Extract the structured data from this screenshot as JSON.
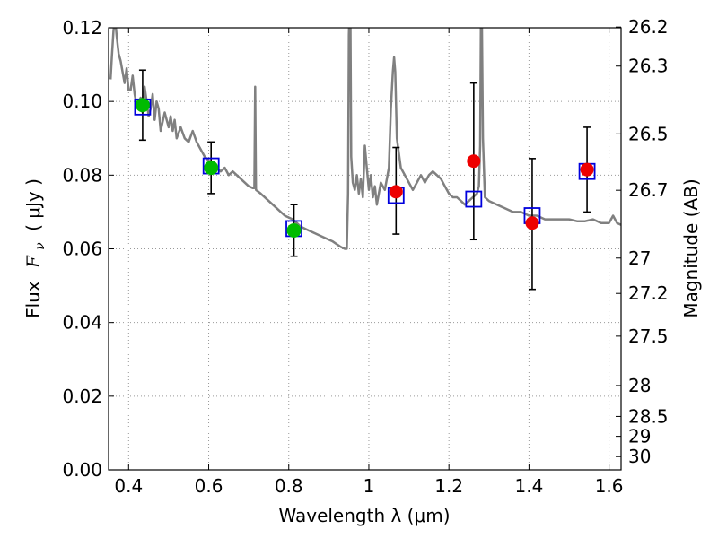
{
  "chart_data": {
    "type": "scatter",
    "title": "",
    "xlabel": "Wavelength  λ (μm)",
    "ylabel_prefix": "Flux",
    "ylabel_symbol": "F",
    "ylabel_sub": "ν",
    "ylabel_suffix": "(  μJy )",
    "y2label": "Magnitude (AB)",
    "xlim": [
      0.35,
      1.63
    ],
    "ylim": [
      0.0,
      0.12
    ],
    "grid": true,
    "x_ticks": [
      0.4,
      0.6,
      0.8,
      1.0,
      1.2,
      1.4,
      1.6
    ],
    "x_tick_labels": [
      "0.4",
      "0.6",
      "0.8",
      "1",
      "1.2",
      "1.4",
      "1.6"
    ],
    "y_ticks": [
      0.0,
      0.02,
      0.04,
      0.06,
      0.08,
      0.1,
      0.12
    ],
    "y_tick_labels": [
      "0.00",
      "0.02",
      "0.04",
      "0.06",
      "0.08",
      "0.10",
      "0.12"
    ],
    "y2_ticks": [
      {
        "label": "26.2",
        "flux": 0.1202
      },
      {
        "label": "26.3",
        "flux": 0.1096
      },
      {
        "label": "26.5",
        "flux": 0.0912
      },
      {
        "label": "26.7",
        "flux": 0.0759
      },
      {
        "label": "27",
        "flux": 0.0575
      },
      {
        "label": "27.2",
        "flux": 0.0479
      },
      {
        "label": "27.5",
        "flux": 0.0363
      },
      {
        "label": "28",
        "flux": 0.0229
      },
      {
        "label": "28.5",
        "flux": 0.0145
      },
      {
        "label": "29",
        "flux": 0.0091
      },
      {
        "label": "30",
        "flux": 0.0036
      }
    ],
    "colors": {
      "model_sed": "#808080",
      "model_flux": "#0000dd",
      "optical_obs": "#00bb00",
      "nir_obs": "#ee0000",
      "error_bar": "#000000",
      "grid": "#999999"
    },
    "series": [
      {
        "kind": "model_sed_line",
        "points": [
          [
            0.355,
            0.106
          ],
          [
            0.358,
            0.112
          ],
          [
            0.362,
            0.119
          ],
          [
            0.366,
            0.123
          ],
          [
            0.37,
            0.118
          ],
          [
            0.375,
            0.113
          ],
          [
            0.38,
            0.111
          ],
          [
            0.385,
            0.108
          ],
          [
            0.39,
            0.105
          ],
          [
            0.395,
            0.109
          ],
          [
            0.4,
            0.103
          ],
          [
            0.405,
            0.103
          ],
          [
            0.41,
            0.107
          ],
          [
            0.415,
            0.102
          ],
          [
            0.42,
            0.099
          ],
          [
            0.425,
            0.1
          ],
          [
            0.43,
            0.101
          ],
          [
            0.435,
            0.097
          ],
          [
            0.44,
            0.104
          ],
          [
            0.445,
            0.1
          ],
          [
            0.45,
            0.096
          ],
          [
            0.455,
            0.098
          ],
          [
            0.46,
            0.102
          ],
          [
            0.465,
            0.095
          ],
          [
            0.47,
            0.1
          ],
          [
            0.475,
            0.098
          ],
          [
            0.48,
            0.092
          ],
          [
            0.49,
            0.097
          ],
          [
            0.5,
            0.093
          ],
          [
            0.505,
            0.096
          ],
          [
            0.51,
            0.092
          ],
          [
            0.515,
            0.095
          ],
          [
            0.52,
            0.09
          ],
          [
            0.53,
            0.093
          ],
          [
            0.54,
            0.09
          ],
          [
            0.55,
            0.089
          ],
          [
            0.56,
            0.092
          ],
          [
            0.57,
            0.089
          ],
          [
            0.58,
            0.087
          ],
          [
            0.59,
            0.085
          ],
          [
            0.6,
            0.084
          ],
          [
            0.61,
            0.083
          ],
          [
            0.62,
            0.082
          ],
          [
            0.63,
            0.081
          ],
          [
            0.64,
            0.082
          ],
          [
            0.65,
            0.08
          ],
          [
            0.66,
            0.081
          ],
          [
            0.67,
            0.08
          ],
          [
            0.68,
            0.079
          ],
          [
            0.69,
            0.078
          ],
          [
            0.7,
            0.077
          ],
          [
            0.71,
            0.0765
          ],
          [
            0.714,
            0.0765
          ],
          [
            0.716,
            0.104
          ],
          [
            0.718,
            0.076
          ],
          [
            0.73,
            0.075
          ],
          [
            0.75,
            0.073
          ],
          [
            0.77,
            0.071
          ],
          [
            0.79,
            0.069
          ],
          [
            0.81,
            0.068
          ],
          [
            0.83,
            0.066
          ],
          [
            0.85,
            0.065
          ],
          [
            0.87,
            0.064
          ],
          [
            0.89,
            0.063
          ],
          [
            0.91,
            0.062
          ],
          [
            0.93,
            0.0605
          ],
          [
            0.94,
            0.06
          ],
          [
            0.945,
            0.06
          ],
          [
            0.948,
            0.075
          ],
          [
            0.95,
            0.118
          ],
          [
            0.952,
            0.125
          ],
          [
            0.954,
            0.125
          ],
          [
            0.956,
            0.085
          ],
          [
            0.96,
            0.078
          ],
          [
            0.965,
            0.076
          ],
          [
            0.97,
            0.08
          ],
          [
            0.975,
            0.075
          ],
          [
            0.98,
            0.079
          ],
          [
            0.985,
            0.074
          ],
          [
            0.99,
            0.088
          ],
          [
            0.995,
            0.082
          ],
          [
            1.0,
            0.076
          ],
          [
            1.005,
            0.08
          ],
          [
            1.01,
            0.074
          ],
          [
            1.015,
            0.077
          ],
          [
            1.02,
            0.072
          ],
          [
            1.03,
            0.078
          ],
          [
            1.04,
            0.076
          ],
          [
            1.05,
            0.082
          ],
          [
            1.055,
            0.098
          ],
          [
            1.06,
            0.108
          ],
          [
            1.063,
            0.112
          ],
          [
            1.066,
            0.108
          ],
          [
            1.07,
            0.09
          ],
          [
            1.08,
            0.082
          ],
          [
            1.09,
            0.08
          ],
          [
            1.1,
            0.078
          ],
          [
            1.11,
            0.076
          ],
          [
            1.12,
            0.078
          ],
          [
            1.13,
            0.08
          ],
          [
            1.14,
            0.078
          ],
          [
            1.15,
            0.08
          ],
          [
            1.16,
            0.081
          ],
          [
            1.17,
            0.08
          ],
          [
            1.18,
            0.079
          ],
          [
            1.19,
            0.077
          ],
          [
            1.2,
            0.075
          ],
          [
            1.21,
            0.074
          ],
          [
            1.22,
            0.074
          ],
          [
            1.23,
            0.073
          ],
          [
            1.24,
            0.072
          ],
          [
            1.25,
            0.073
          ],
          [
            1.26,
            0.074
          ],
          [
            1.27,
            0.075
          ],
          [
            1.275,
            0.077
          ],
          [
            1.278,
            0.088
          ],
          [
            1.28,
            0.125
          ],
          [
            1.282,
            0.125
          ],
          [
            1.285,
            0.09
          ],
          [
            1.29,
            0.074
          ],
          [
            1.3,
            0.073
          ],
          [
            1.32,
            0.072
          ],
          [
            1.34,
            0.071
          ],
          [
            1.36,
            0.07
          ],
          [
            1.38,
            0.07
          ],
          [
            1.4,
            0.069
          ],
          [
            1.42,
            0.069
          ],
          [
            1.44,
            0.068
          ],
          [
            1.46,
            0.068
          ],
          [
            1.48,
            0.068
          ],
          [
            1.5,
            0.068
          ],
          [
            1.52,
            0.0675
          ],
          [
            1.54,
            0.0675
          ],
          [
            1.56,
            0.068
          ],
          [
            1.58,
            0.067
          ],
          [
            1.6,
            0.067
          ],
          [
            1.61,
            0.069
          ],
          [
            1.62,
            0.067
          ],
          [
            1.63,
            0.0665
          ]
        ]
      },
      {
        "kind": "model_flux_squares",
        "points": [
          [
            0.435,
            0.0985
          ],
          [
            0.606,
            0.0825
          ],
          [
            0.813,
            0.0655
          ],
          [
            1.068,
            0.0745
          ],
          [
            1.262,
            0.0735
          ],
          [
            1.408,
            0.069
          ],
          [
            1.545,
            0.081
          ]
        ]
      },
      {
        "kind": "optical_obs_circles",
        "points": [
          [
            0.435,
            0.099
          ],
          [
            0.606,
            0.082
          ],
          [
            0.813,
            0.065
          ]
        ]
      },
      {
        "kind": "nir_obs_circles",
        "points": [
          [
            1.068,
            0.0755
          ],
          [
            1.262,
            0.0838
          ],
          [
            1.408,
            0.067
          ],
          [
            1.545,
            0.0815
          ]
        ]
      },
      {
        "kind": "error_bars",
        "bars": [
          {
            "x": 0.435,
            "low": 0.0895,
            "high": 0.1085
          },
          {
            "x": 0.606,
            "low": 0.075,
            "high": 0.089
          },
          {
            "x": 0.813,
            "low": 0.058,
            "high": 0.072
          },
          {
            "x": 1.068,
            "low": 0.064,
            "high": 0.0875
          },
          {
            "x": 1.262,
            "low": 0.0625,
            "high": 0.105
          },
          {
            "x": 1.408,
            "low": 0.049,
            "high": 0.0845
          },
          {
            "x": 1.545,
            "low": 0.07,
            "high": 0.093
          }
        ]
      }
    ]
  }
}
